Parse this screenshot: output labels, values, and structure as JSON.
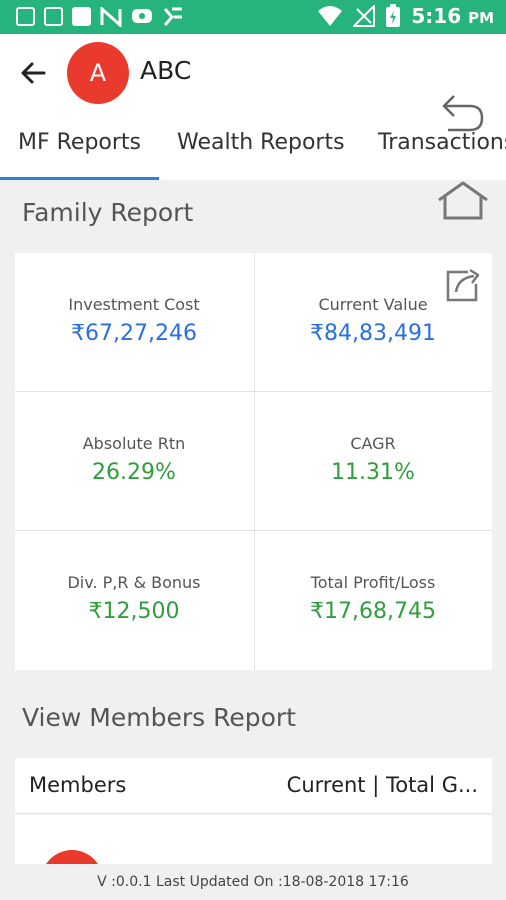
{
  "status_bar": {
    "time": "5:16",
    "period": "PM",
    "colors": {
      "background": "#26b37c"
    },
    "icons": [
      "gmail-icon",
      "mail-icon",
      "image-icon",
      "n-app-icon",
      "chat-icon",
      "ticket-icon",
      "wifi-icon",
      "signal-icon",
      "battery-icon"
    ]
  },
  "header": {
    "avatar_letter": "A",
    "user_name": "ABC",
    "avatar_color": "#ea3a2e"
  },
  "tabs": [
    {
      "label": "MF Reports",
      "active": true
    },
    {
      "label": "Wealth Reports",
      "active": false
    },
    {
      "label": "Transactions",
      "active": false
    }
  ],
  "family_report": {
    "title": "Family Report",
    "metrics": [
      {
        "label": "Investment Cost",
        "value": "₹67,27,246",
        "color": "#2a6fe0"
      },
      {
        "label": "Current Value",
        "value": "₹84,83,491",
        "color": "#2a6fe0"
      },
      {
        "label": "Absolute Rtn",
        "value": "26.29%",
        "color": "#2f9e3c"
      },
      {
        "label": "CAGR",
        "value": "11.31%",
        "color": "#2f9e3c"
      },
      {
        "label": "Div. P,R & Bonus",
        "value": "₹12,500",
        "color": "#2f9e3c"
      },
      {
        "label": "Total Profit/Loss",
        "value": "₹17,68,745",
        "color": "#2f9e3c"
      }
    ]
  },
  "members_report": {
    "title": "View Members Report",
    "col_members": "Members",
    "col_current": "Current | Total G..."
  },
  "footer": {
    "text": "V :0.0.1 Last Updated On :18-08-2018 17:16"
  }
}
